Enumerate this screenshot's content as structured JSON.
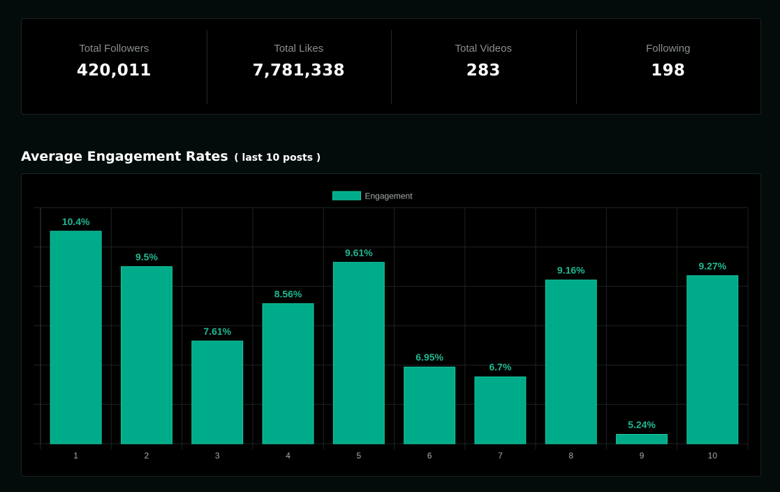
{
  "stats": [
    {
      "label": "Total Followers",
      "value": "420,011"
    },
    {
      "label": "Total Likes",
      "value": "7,781,338"
    },
    {
      "label": "Total Videos",
      "value": "283"
    },
    {
      "label": "Following",
      "value": "198"
    }
  ],
  "section": {
    "title": "Average Engagement Rates",
    "subtitle": "( last 10 posts )"
  },
  "colors": {
    "bar": "#00ab8a",
    "bar_border": "#18c8a2",
    "label": "#1fb892",
    "grid": "#1e2323"
  },
  "chart_data": {
    "type": "bar",
    "categories": [
      "1",
      "2",
      "3",
      "4",
      "5",
      "6",
      "7",
      "8",
      "9",
      "10"
    ],
    "series": [
      {
        "name": "Engagement",
        "values": [
          10.4,
          9.5,
          7.61,
          8.56,
          9.61,
          6.95,
          6.7,
          9.16,
          5.24,
          9.27
        ]
      }
    ],
    "data_labels": [
      "10.4%",
      "9.5%",
      "7.61%",
      "8.56%",
      "9.61%",
      "6.95%",
      "6.7%",
      "9.16%",
      "5.24%",
      "9.27%"
    ],
    "ylim": [
      5,
      11
    ],
    "legend": "top-center",
    "grid": true
  }
}
